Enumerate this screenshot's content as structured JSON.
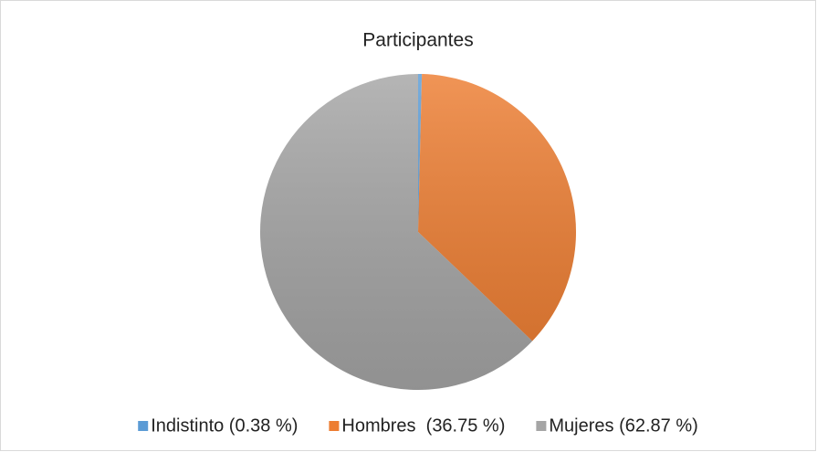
{
  "chart_data": {
    "type": "pie",
    "title": "Participantes",
    "categories": [
      "Indistinto (0.38 %)",
      "Hombres  (36.75 %)",
      "Mujeres (62.87 %)"
    ],
    "values": [
      0.38,
      36.75,
      62.87
    ],
    "colors": [
      "#5b9bd5",
      "#ed7d31",
      "#a5a5a5"
    ],
    "legend": "bottom"
  }
}
